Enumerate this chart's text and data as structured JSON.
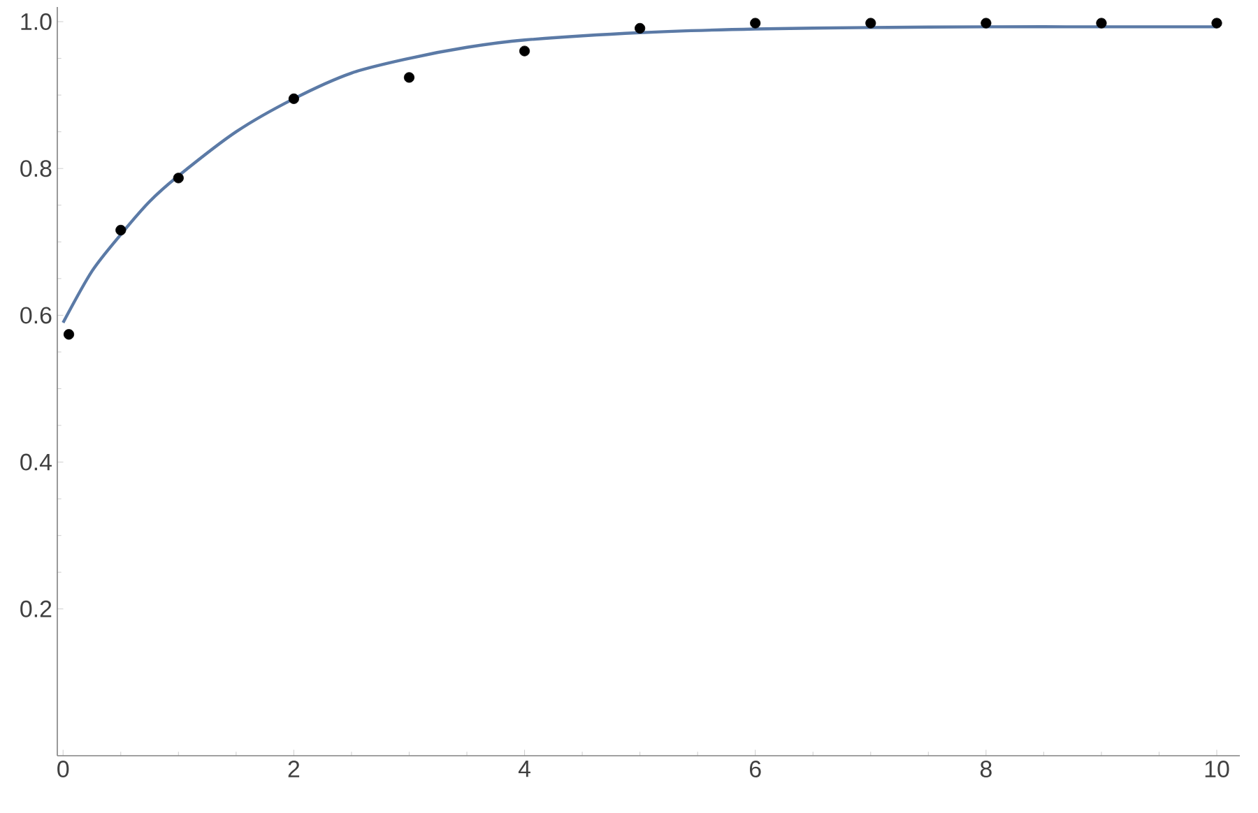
{
  "chart_data": {
    "type": "scatter",
    "grid": false,
    "xlim": [
      -0.05,
      10.2
    ],
    "ylim": [
      0,
      1.02
    ],
    "xticks": [
      0,
      2,
      4,
      6,
      8,
      10
    ],
    "yticks": [
      {
        "value": 0.2,
        "label": "0.2"
      },
      {
        "value": 0.4,
        "label": "0.4"
      },
      {
        "value": 0.6,
        "label": "0.6"
      },
      {
        "value": 0.8,
        "label": "0.8"
      },
      {
        "value": 1.0,
        "label": "1.0"
      }
    ],
    "series": [
      {
        "marker": "circle",
        "color": "#000000",
        "x": [
          0.05,
          0.5,
          1,
          2,
          3,
          4,
          5,
          6,
          7,
          8,
          9,
          10
        ],
        "values": [
          0.574,
          0.716,
          0.787,
          0.895,
          0.924,
          0.96,
          0.991,
          0.998,
          0.998,
          0.998,
          0.998,
          0.998
        ]
      },
      {
        "type": "line",
        "marker": "none",
        "color": "#5b7aa6",
        "x": [
          0,
          0.25,
          0.5,
          0.75,
          1,
          1.5,
          2,
          2.5,
          3,
          3.5,
          4,
          5,
          6,
          7,
          8,
          9,
          10
        ],
        "values": [
          0.59,
          0.66,
          0.71,
          0.755,
          0.79,
          0.85,
          0.895,
          0.93,
          0.95,
          0.965,
          0.975,
          0.985,
          0.99,
          0.992,
          0.993,
          0.993,
          0.993
        ]
      }
    ]
  }
}
